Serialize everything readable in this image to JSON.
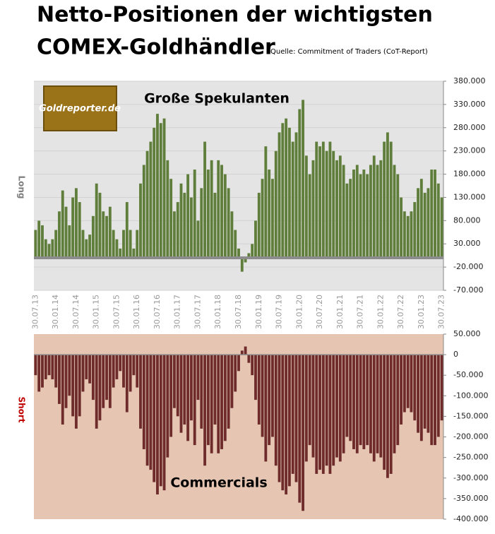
{
  "header": {
    "title_line1": "Netto-Positionen der wichtigsten",
    "title_line2": "COMEX-Goldhändler",
    "source": "Quelle: Commitment of Traders (CoT-Report)",
    "logo": "Goldreporter.de"
  },
  "chart_data": [
    {
      "type": "bar",
      "annotation": "Große Spekulanten",
      "y_label": "Long",
      "y_label_color": "#7f7f7f",
      "color": "#5f7d3b",
      "background": "#e4e4e4",
      "grid": true,
      "categories": [
        "30.07.13",
        null,
        null,
        null,
        null,
        null,
        "30.01.14",
        null,
        null,
        null,
        null,
        null,
        "30.07.14",
        null,
        null,
        null,
        null,
        null,
        "30.01.15",
        null,
        null,
        null,
        null,
        null,
        "30.07.15",
        null,
        null,
        null,
        null,
        null,
        "30.01.16",
        null,
        null,
        null,
        null,
        null,
        "30.07.16",
        null,
        null,
        null,
        null,
        null,
        "30.01.17",
        null,
        null,
        null,
        null,
        null,
        "30.07.17",
        null,
        null,
        null,
        null,
        null,
        "30.01.18",
        null,
        null,
        null,
        null,
        null,
        "30.07.18",
        null,
        null,
        null,
        null,
        null,
        "30.01.19",
        null,
        null,
        null,
        null,
        null,
        "30.07.19",
        null,
        null,
        null,
        null,
        null,
        "30.01.20",
        null,
        null,
        null,
        null,
        null,
        "30.07.20",
        null,
        null,
        null,
        null,
        null,
        "30.01.21",
        null,
        null,
        null,
        null,
        null,
        "30.07.21",
        null,
        null,
        null,
        null,
        null,
        "30.01.22",
        null,
        null,
        null,
        null,
        null,
        "30.07.22",
        null,
        null,
        null,
        null,
        null,
        "30.01.23",
        null,
        null,
        null,
        null,
        null,
        "30.07.23"
      ],
      "values": [
        60000,
        80000,
        70000,
        40000,
        30000,
        40000,
        60000,
        100000,
        145000,
        110000,
        70000,
        130000,
        150000,
        120000,
        60000,
        40000,
        50000,
        90000,
        160000,
        140000,
        100000,
        90000,
        110000,
        60000,
        40000,
        20000,
        60000,
        120000,
        60000,
        20000,
        60000,
        160000,
        200000,
        230000,
        250000,
        280000,
        310000,
        290000,
        300000,
        210000,
        170000,
        100000,
        120000,
        160000,
        140000,
        180000,
        130000,
        190000,
        80000,
        150000,
        250000,
        190000,
        210000,
        140000,
        210000,
        200000,
        180000,
        150000,
        100000,
        60000,
        20000,
        -30000,
        -10000,
        10000,
        30000,
        80000,
        140000,
        170000,
        240000,
        190000,
        170000,
        230000,
        270000,
        290000,
        300000,
        280000,
        250000,
        270000,
        320000,
        340000,
        220000,
        180000,
        210000,
        250000,
        240000,
        250000,
        230000,
        250000,
        230000,
        210000,
        220000,
        200000,
        160000,
        170000,
        190000,
        200000,
        180000,
        190000,
        180000,
        200000,
        220000,
        200000,
        210000,
        250000,
        270000,
        250000,
        200000,
        180000,
        130000,
        100000,
        90000,
        100000,
        120000,
        150000,
        170000,
        140000,
        150000,
        190000,
        190000,
        160000,
        130000
      ],
      "ylim": [
        -70000,
        380000
      ],
      "yticks": [
        {
          "value": 380000,
          "label": "380.000"
        },
        {
          "value": 330000,
          "label": "330.000"
        },
        {
          "value": 280000,
          "label": "280.000"
        },
        {
          "value": 230000,
          "label": "230.000"
        },
        {
          "value": 180000,
          "label": "180.000"
        },
        {
          "value": 130000,
          "label": "130.000"
        },
        {
          "value": 80000,
          "label": "80.000"
        },
        {
          "value": 30000,
          "label": "30.000"
        },
        {
          "value": -20000,
          "label": "-20.000"
        },
        {
          "value": -70000,
          "label": "-70.000"
        }
      ]
    },
    {
      "type": "bar",
      "annotation": "Commercials",
      "y_label": "Short",
      "y_label_color": "#c00000",
      "color": "#6e2b29",
      "background": "#e6c6b2",
      "grid": false,
      "values": [
        -50000,
        -90000,
        -80000,
        -60000,
        -50000,
        -60000,
        -80000,
        -120000,
        -170000,
        -130000,
        -100000,
        -150000,
        -180000,
        -150000,
        -90000,
        -60000,
        -70000,
        -110000,
        -180000,
        -160000,
        -130000,
        -110000,
        -130000,
        -80000,
        -60000,
        -40000,
        -80000,
        -140000,
        -90000,
        -50000,
        -80000,
        -180000,
        -230000,
        -270000,
        -280000,
        -310000,
        -340000,
        -320000,
        -330000,
        -250000,
        -200000,
        -130000,
        -150000,
        -190000,
        -170000,
        -210000,
        -160000,
        -220000,
        -110000,
        -180000,
        -270000,
        -220000,
        -240000,
        -170000,
        -240000,
        -230000,
        -210000,
        -180000,
        -130000,
        -90000,
        -40000,
        10000,
        20000,
        -20000,
        -50000,
        -110000,
        -170000,
        -200000,
        -260000,
        -220000,
        -200000,
        -270000,
        -310000,
        -330000,
        -340000,
        -320000,
        -290000,
        -310000,
        -360000,
        -380000,
        -260000,
        -220000,
        -250000,
        -290000,
        -280000,
        -290000,
        -270000,
        -290000,
        -270000,
        -250000,
        -260000,
        -240000,
        -200000,
        -210000,
        -230000,
        -240000,
        -220000,
        -230000,
        -220000,
        -240000,
        -260000,
        -240000,
        -250000,
        -280000,
        -300000,
        -290000,
        -240000,
        -220000,
        -170000,
        -140000,
        -130000,
        -140000,
        -160000,
        -190000,
        -210000,
        -180000,
        -190000,
        -220000,
        -220000,
        -200000,
        -160000
      ],
      "ylim": [
        -400000,
        50000
      ],
      "yticks": [
        {
          "value": 50000,
          "label": "50.000"
        },
        0,
        {
          "value": -50000,
          "label": "-50.000"
        },
        {
          "value": -100000,
          "label": "-100.000"
        },
        {
          "value": -150000,
          "label": "-150.000"
        },
        {
          "value": -200000,
          "label": "-200.000"
        },
        {
          "value": -250000,
          "label": "-250.000"
        },
        {
          "value": -300000,
          "label": "-300.000"
        },
        {
          "value": -350000,
          "label": "-350.000"
        },
        {
          "value": -400000,
          "label": "-400.000"
        }
      ]
    }
  ]
}
